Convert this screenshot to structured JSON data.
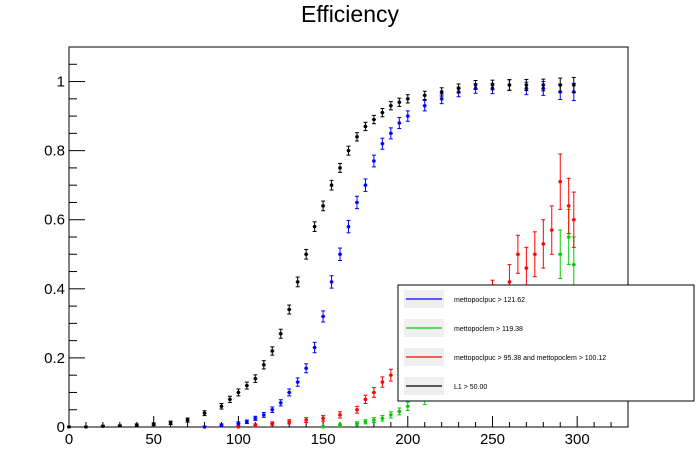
{
  "chart_data": {
    "type": "scatter",
    "title": "Efficiency",
    "xlabel": "",
    "ylabel": "",
    "xlim": [
      0,
      330
    ],
    "ylim": [
      0,
      1.1
    ],
    "x_ticks": [
      0,
      50,
      100,
      150,
      200,
      250,
      300
    ],
    "y_ticks": [
      0,
      0.2,
      0.4,
      0.6,
      0.8,
      1
    ],
    "x_tick_labels": [
      "0",
      "50",
      "100",
      "150",
      "200",
      "250",
      "300"
    ],
    "y_tick_labels": [
      "0",
      "0.2",
      "0.4",
      "0.6",
      "0.8",
      "1"
    ],
    "grid": false,
    "legend_position": "bottom-right",
    "legend": [
      {
        "label": "mettopoclpuc >  121.62",
        "color": "#0000ff",
        "series": 0
      },
      {
        "label": "mettopoclem >  119.38",
        "color": "#00cc00",
        "series": 1
      },
      {
        "label": "mettopoclpuc >  95.38 and mettopoclem >  100.12",
        "color": "#ff0000",
        "series": 2
      },
      {
        "label": "L1 >  50.00",
        "color": "#000000",
        "series": 3
      }
    ],
    "series": [
      {
        "name": "mettopoclpuc >  121.62",
        "color": "#0000ff",
        "x": [
          80,
          90,
          100,
          105,
          110,
          115,
          120,
          125,
          130,
          135,
          140,
          145,
          150,
          155,
          160,
          165,
          170,
          175,
          180,
          185,
          190,
          195,
          200,
          210,
          220,
          230,
          240,
          250,
          260,
          270,
          280,
          290,
          298
        ],
        "y": [
          0.0,
          0.005,
          0.01,
          0.015,
          0.025,
          0.035,
          0.05,
          0.07,
          0.1,
          0.13,
          0.17,
          0.23,
          0.32,
          0.42,
          0.5,
          0.58,
          0.65,
          0.7,
          0.77,
          0.82,
          0.85,
          0.88,
          0.9,
          0.93,
          0.95,
          0.97,
          0.98,
          0.98,
          0.99,
          0.98,
          0.98,
          0.97,
          0.97
        ],
        "yerr": [
          0.003,
          0.004,
          0.005,
          0.005,
          0.006,
          0.007,
          0.008,
          0.009,
          0.01,
          0.012,
          0.013,
          0.015,
          0.016,
          0.018,
          0.018,
          0.018,
          0.018,
          0.018,
          0.017,
          0.016,
          0.016,
          0.016,
          0.015,
          0.015,
          0.014,
          0.014,
          0.014,
          0.015,
          0.016,
          0.018,
          0.02,
          0.022,
          0.025
        ]
      },
      {
        "name": "mettopoclem >  119.38",
        "color": "#00cc00",
        "x": [
          150,
          160,
          170,
          175,
          180,
          185,
          190,
          195,
          200,
          210,
          220,
          230,
          240,
          250,
          260,
          270,
          280,
          285,
          290,
          295,
          298
        ],
        "y": [
          0.0,
          0.005,
          0.01,
          0.015,
          0.02,
          0.025,
          0.035,
          0.045,
          0.06,
          0.08,
          0.1,
          0.12,
          0.15,
          0.17,
          0.2,
          0.25,
          0.3,
          0.35,
          0.5,
          0.55,
          0.47
        ],
        "yerr": [
          0.003,
          0.004,
          0.005,
          0.006,
          0.007,
          0.008,
          0.009,
          0.01,
          0.012,
          0.015,
          0.018,
          0.02,
          0.025,
          0.03,
          0.035,
          0.04,
          0.05,
          0.06,
          0.07,
          0.08,
          0.08
        ]
      },
      {
        "name": "mettopoclpuc >  95.38 and mettopoclem >  100.12",
        "color": "#ff0000",
        "x": [
          100,
          110,
          120,
          130,
          140,
          150,
          160,
          170,
          175,
          180,
          185,
          190,
          195,
          200,
          210,
          220,
          230,
          240,
          250,
          260,
          265,
          270,
          275,
          280,
          285,
          290,
          295,
          298
        ],
        "y": [
          0.0,
          0.005,
          0.01,
          0.015,
          0.02,
          0.025,
          0.035,
          0.05,
          0.08,
          0.1,
          0.13,
          0.15,
          0.17,
          0.2,
          0.22,
          0.24,
          0.25,
          0.32,
          0.38,
          0.42,
          0.5,
          0.46,
          0.5,
          0.53,
          0.57,
          0.71,
          0.64,
          0.6
        ],
        "yerr": [
          0.003,
          0.004,
          0.005,
          0.006,
          0.007,
          0.008,
          0.009,
          0.01,
          0.012,
          0.014,
          0.015,
          0.017,
          0.018,
          0.02,
          0.025,
          0.028,
          0.03,
          0.04,
          0.045,
          0.05,
          0.055,
          0.06,
          0.065,
          0.07,
          0.07,
          0.08,
          0.08,
          0.08
        ]
      },
      {
        "name": "L1 >  50.00",
        "color": "#000000",
        "x": [
          0,
          10,
          20,
          30,
          40,
          50,
          60,
          70,
          80,
          90,
          95,
          100,
          105,
          110,
          115,
          120,
          125,
          130,
          135,
          140,
          145,
          150,
          155,
          160,
          165,
          170,
          175,
          180,
          185,
          190,
          195,
          200,
          210,
          220,
          230,
          240,
          250,
          260,
          270,
          280,
          290,
          298
        ],
        "y": [
          0.0,
          0.0,
          0.002,
          0.003,
          0.005,
          0.008,
          0.012,
          0.02,
          0.04,
          0.06,
          0.08,
          0.1,
          0.12,
          0.14,
          0.18,
          0.22,
          0.27,
          0.34,
          0.42,
          0.5,
          0.58,
          0.64,
          0.7,
          0.75,
          0.8,
          0.84,
          0.87,
          0.89,
          0.91,
          0.93,
          0.94,
          0.95,
          0.96,
          0.97,
          0.98,
          0.99,
          0.99,
          0.99,
          0.99,
          0.99,
          0.99,
          0.99
        ],
        "yerr": [
          0.002,
          0.002,
          0.003,
          0.003,
          0.004,
          0.004,
          0.005,
          0.006,
          0.007,
          0.008,
          0.009,
          0.01,
          0.01,
          0.011,
          0.012,
          0.012,
          0.013,
          0.013,
          0.014,
          0.014,
          0.014,
          0.014,
          0.014,
          0.013,
          0.013,
          0.012,
          0.012,
          0.012,
          0.012,
          0.012,
          0.012,
          0.012,
          0.012,
          0.012,
          0.013,
          0.013,
          0.014,
          0.015,
          0.016,
          0.017,
          0.02,
          0.022
        ]
      }
    ]
  }
}
